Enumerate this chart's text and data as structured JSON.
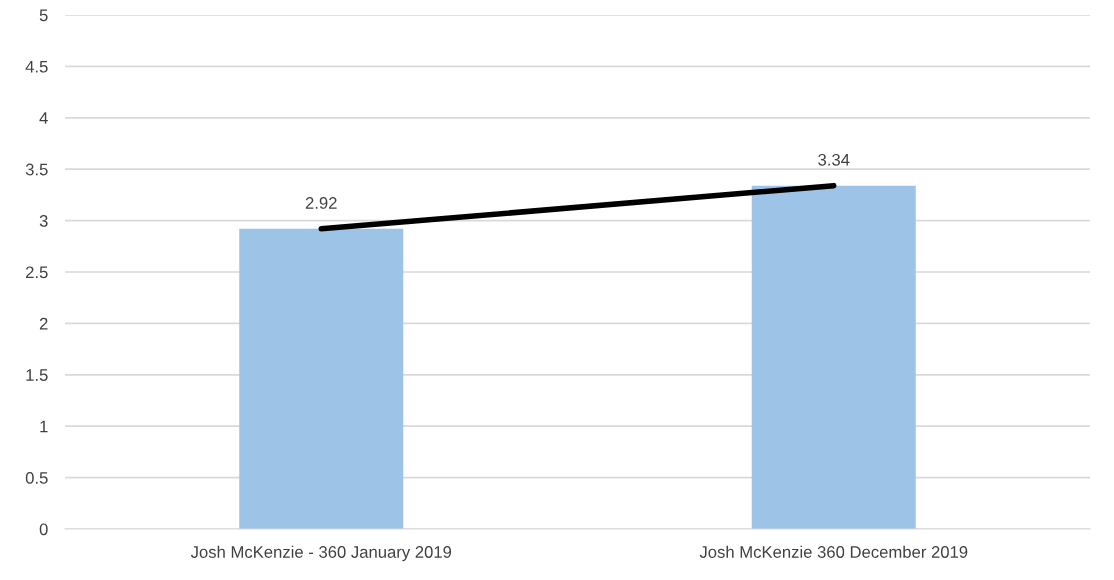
{
  "chart_data": {
    "type": "bar",
    "categories": [
      "Josh McKenzie - 360 January 2019",
      "Josh McKenzie 360 December 2019"
    ],
    "series": [
      {
        "color": "#9dc3e6",
        "values": [
          2.92,
          3.34
        ],
        "value_labels": [
          "2.92",
          "3.34"
        ]
      },
      {
        "type": "line",
        "color": "#000000",
        "values": [
          2.92,
          3.34
        ],
        "marker": "none",
        "line_style": "solid"
      }
    ],
    "ylim": [
      0,
      5
    ],
    "yticks": [
      0,
      0.5,
      1,
      1.5,
      2,
      2.5,
      3,
      3.5,
      4,
      4.5,
      5
    ],
    "grid": "y",
    "legend": false
  }
}
